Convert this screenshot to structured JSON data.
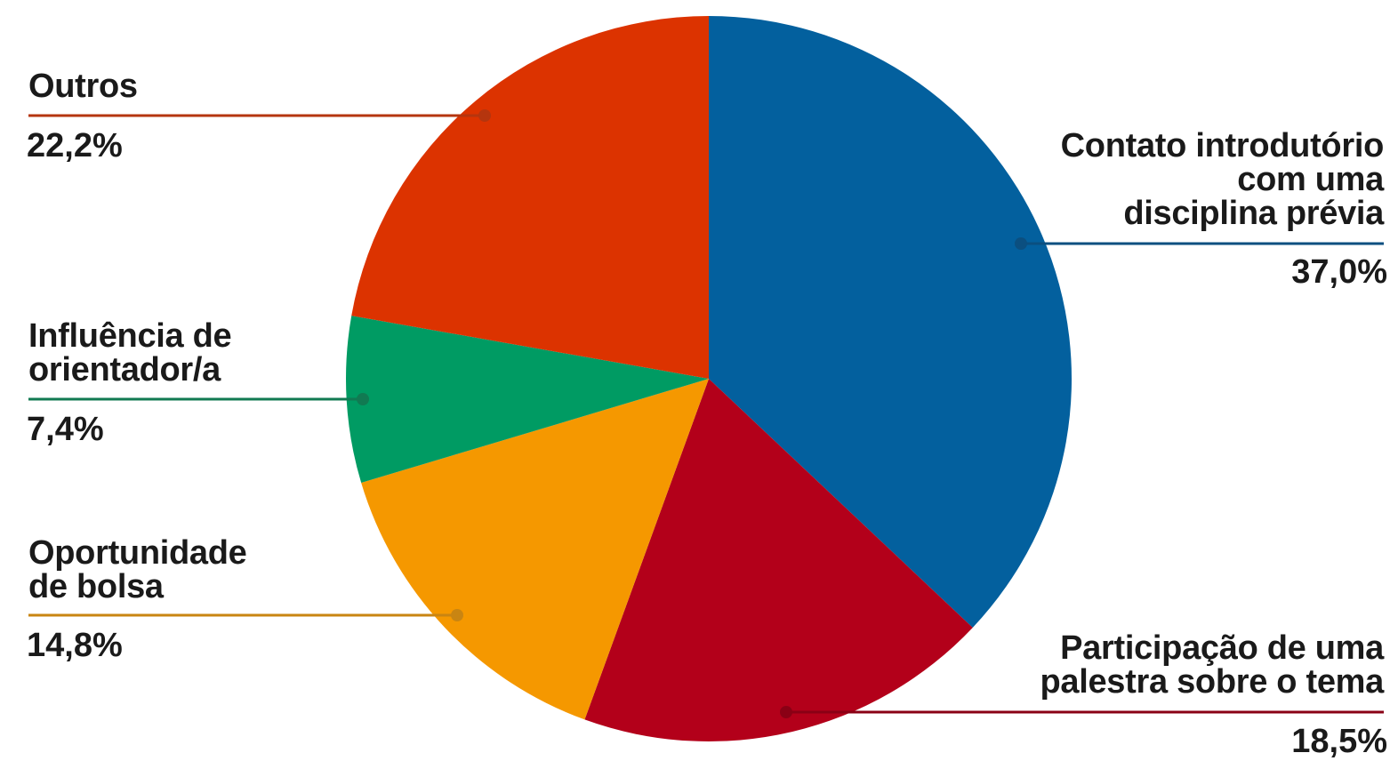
{
  "chart_data": {
    "type": "pie",
    "title": "",
    "slices": [
      {
        "label": "Contato introdutório com uma disciplina prévia",
        "label_lines": [
          "Contato introdutório",
          "com uma",
          "disciplina prévia"
        ],
        "value": 37.0,
        "value_label": "37,0%",
        "color": "#03609e"
      },
      {
        "label": "Participação de uma palestra sobre o tema",
        "label_lines": [
          "Participação de uma",
          "palestra sobre o tema"
        ],
        "value": 18.5,
        "value_label": "18,5%",
        "color": "#b3001a"
      },
      {
        "label": "Oportunidade de bolsa",
        "label_lines": [
          "Oportunidade",
          "de bolsa"
        ],
        "value": 14.8,
        "value_label": "14,8%",
        "color": "#f59800"
      },
      {
        "label": "Influência de orientador/a",
        "label_lines": [
          "Influência de",
          "orientador/a"
        ],
        "value": 7.4,
        "value_label": "7,4%",
        "color": "#009b63"
      },
      {
        "label": "Outros",
        "label_lines": [
          "Outros"
        ],
        "value": 22.2,
        "value_label": "22,2%",
        "color": "#dc3300"
      }
    ],
    "leader_colors": [
      "#0b4f80",
      "#8a0015",
      "#c98512",
      "#117a52",
      "#b5350e"
    ]
  }
}
